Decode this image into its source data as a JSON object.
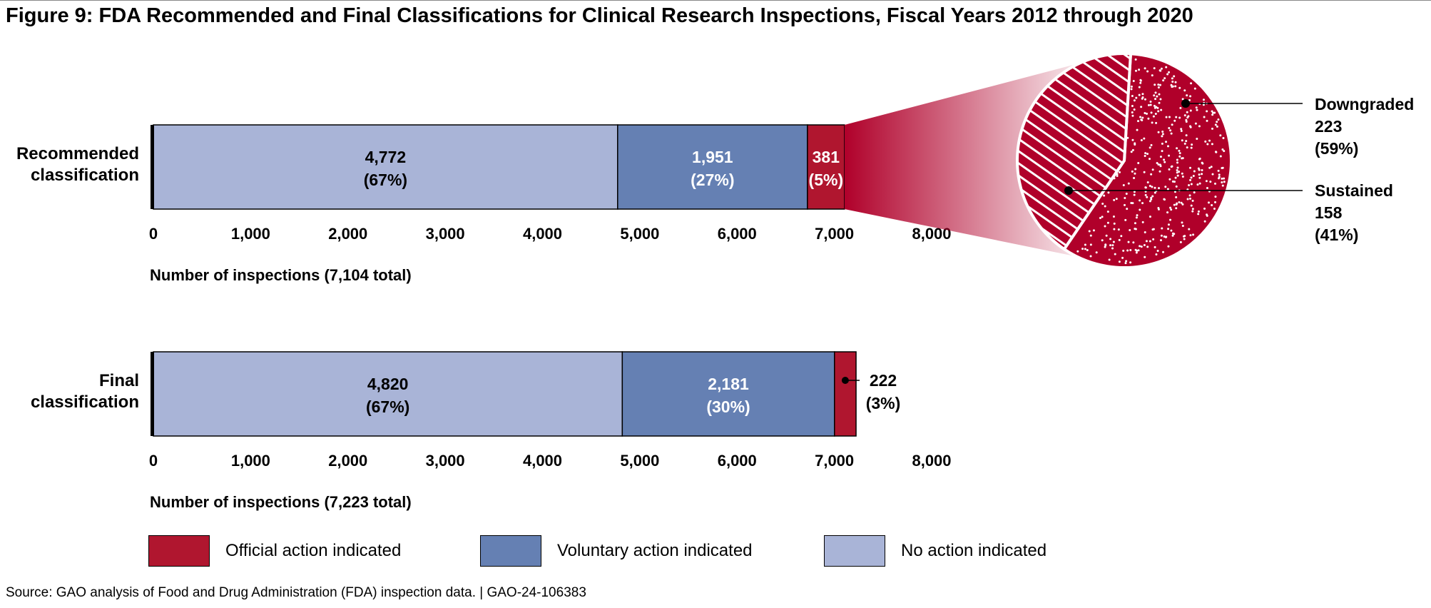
{
  "title": "Figure 9: FDA Recommended and Final Classifications for Clinical Research Inspections, Fiscal Years 2012 through 2020",
  "source": "Source: GAO analysis of Food and Drug Administration (FDA) inspection data.  |  GAO-24-106383",
  "colors": {
    "official": "#b0162f",
    "voluntary": "#6580b3",
    "none": "#a9b4d7",
    "pie": "#b0002a"
  },
  "legend": [
    {
      "key": "official",
      "label": "Official action indicated"
    },
    {
      "key": "voluntary",
      "label": "Voluntary action indicated"
    },
    {
      "key": "none",
      "label": "No action indicated"
    }
  ],
  "chart_data": [
    {
      "type": "bar",
      "orientation": "horizontal-stacked",
      "category": "Recommended\nclassification",
      "xlabel": "Number of inspections (7,104 total)",
      "xlim": [
        0,
        8000
      ],
      "ticks": [
        "0",
        "1,000",
        "2,000",
        "3,000",
        "4,000",
        "5,000",
        "6,000",
        "7,000",
        "8,000"
      ],
      "segments": [
        {
          "key": "none",
          "value": 4772,
          "label": "4,772",
          "pct": "(67%)"
        },
        {
          "key": "voluntary",
          "value": 1951,
          "label": "1,951",
          "pct": "(27%)"
        },
        {
          "key": "official",
          "value": 381,
          "label": "381",
          "pct": "(5%)"
        }
      ]
    },
    {
      "type": "pie",
      "of": "Official action indicated (recommended)",
      "slices": [
        {
          "name": "Downgraded",
          "value": 223,
          "pct": "(59%)"
        },
        {
          "name": "Sustained",
          "value": 158,
          "pct": "(41%)"
        }
      ]
    },
    {
      "type": "bar",
      "orientation": "horizontal-stacked",
      "category": "Final\nclassification",
      "xlabel": "Number of inspections (7,223 total)",
      "xlim": [
        0,
        8000
      ],
      "ticks": [
        "0",
        "1,000",
        "2,000",
        "3,000",
        "4,000",
        "5,000",
        "6,000",
        "7,000",
        "8,000"
      ],
      "segments": [
        {
          "key": "none",
          "value": 4820,
          "label": "4,820",
          "pct": "(67%)"
        },
        {
          "key": "voluntary",
          "value": 2181,
          "label": "2,181",
          "pct": "(30%)"
        },
        {
          "key": "official",
          "value": 222,
          "label": "222",
          "pct": "(3%)"
        }
      ]
    }
  ]
}
